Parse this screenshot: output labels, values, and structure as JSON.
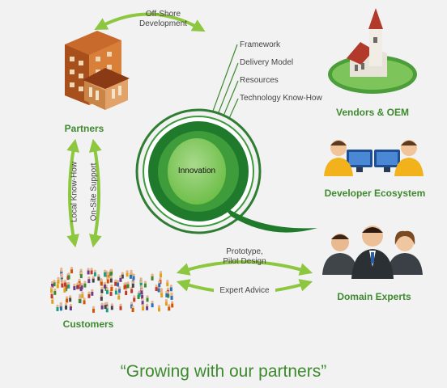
{
  "diagram": {
    "top_arrow_label": "Off-Shore\nDevelopment",
    "center_label": "Innovation",
    "factors": [
      "Framework",
      "Delivery Model",
      "Resources",
      "Technology Know-How"
    ],
    "nodes": {
      "partners": "Partners",
      "vendors": "Vendors & OEM",
      "developers": "Developer Ecosystem",
      "domain_experts": "Domain Experts",
      "customers": "Customers"
    },
    "vertical_labels": {
      "left": "Local Know-How",
      "right": "On-Site Support"
    },
    "bottom_arrows": {
      "top": "Prototype,\nPilot Design",
      "bottom": "Expert Advice"
    },
    "caption": "“Growing with our partners”"
  },
  "colors": {
    "green": "#3e8a2e",
    "arrow_green": "#8dc63f",
    "dark_green": "#1f7a2c"
  },
  "icons": [
    "buildings-icon",
    "church-globe-icon",
    "developers-icon",
    "business-people-icon",
    "crowd-icon"
  ]
}
